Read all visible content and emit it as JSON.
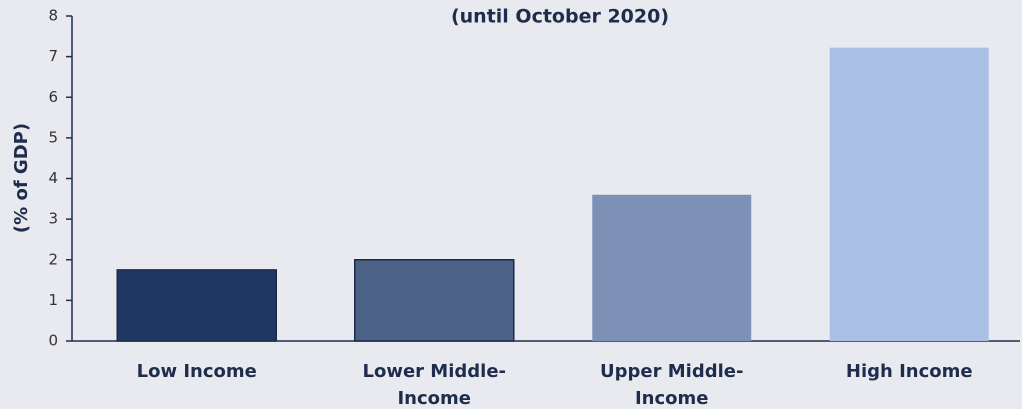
{
  "chart_data": {
    "type": "bar",
    "title": "(until October 2020)",
    "y_label": "(% of GDP)",
    "categories": [
      "Low Income",
      "Lower Middle-Income",
      "Upper Middle-Income",
      "High Income"
    ],
    "values": [
      1.75,
      2.0,
      3.6,
      7.22
    ],
    "colors": [
      "#203864",
      "#4b6185",
      "#7d91b7",
      "#aabfe6"
    ],
    "ylim": [
      0,
      8
    ],
    "yticks": [
      0,
      1,
      2,
      3,
      4,
      5,
      6,
      7,
      8
    ],
    "grid": false
  }
}
